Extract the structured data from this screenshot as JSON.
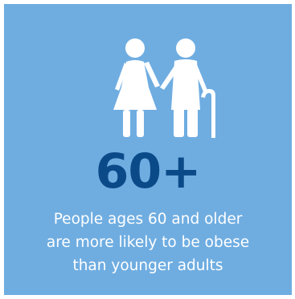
{
  "infographic": {
    "background_color": "#6fade1",
    "stat_color": "#0b4a89",
    "icon": "elderly-couple-icon",
    "stat": "60+",
    "caption_lines": [
      "People ages 60 and older",
      "are more likely to be obese",
      "than younger adults"
    ]
  }
}
